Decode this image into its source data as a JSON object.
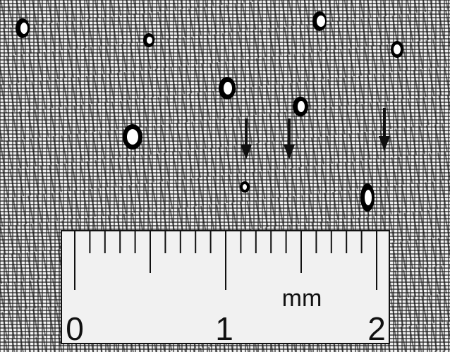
{
  "image": {
    "background_color": "#efefef",
    "cell_wall_color": "#111111"
  },
  "scale": {
    "labels": [
      "0",
      "1",
      "2"
    ],
    "unit": "mm",
    "range_mm": [
      0,
      2
    ],
    "minor_divisions_per_mm": 10
  },
  "annotations": {
    "arrow_count": 3,
    "arrow_color": "#111111"
  }
}
